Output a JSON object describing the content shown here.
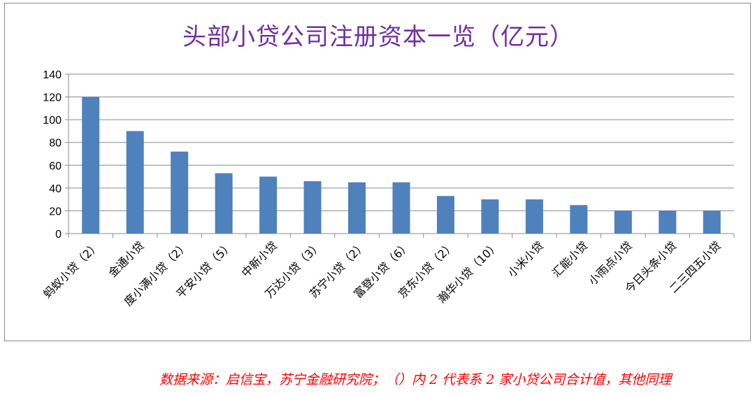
{
  "chart_data": {
    "type": "bar",
    "title": "头部小贷公司注册资本一览（亿元）",
    "categories": [
      "蚂蚁小贷（2）",
      "金通小贷",
      "度小满小贷（2）",
      "平安小贷（5）",
      "中新小贷",
      "万达小贷（3）",
      "苏宁小贷（2）",
      "富登小贷（6）",
      "京东小贷（2）",
      "瀚华小贷（10）",
      "小米小贷",
      "汇能小贷",
      "小雨点小贷",
      "今日头条小贷",
      "二三四五小贷"
    ],
    "values": [
      120,
      90,
      72,
      53,
      50,
      46,
      45,
      45,
      33,
      30,
      30,
      25,
      20,
      20,
      20
    ],
    "yticks": [
      "0",
      "20",
      "40",
      "60",
      "80",
      "100",
      "120",
      "140"
    ],
    "ylim": [
      0,
      140
    ],
    "grid": true,
    "bar_color": "#4f81bd"
  },
  "source_note": "数据来源：启信宝，苏宁金融研究院；（）内 2 代表系 2 家小贷公司合计值，其他同理"
}
